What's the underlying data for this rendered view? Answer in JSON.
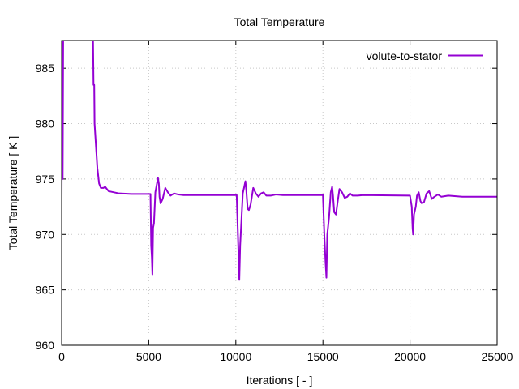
{
  "chart_data": {
    "type": "line",
    "title": "Total Temperature",
    "xlabel": "Iterations [ - ]",
    "ylabel": "Total Temperature [ K ]",
    "xlim": [
      0,
      25000
    ],
    "ylim": [
      960,
      987.5
    ],
    "xticks": [
      0,
      5000,
      10000,
      15000,
      20000,
      25000
    ],
    "yticks": [
      960,
      965,
      970,
      975,
      980,
      985
    ],
    "grid": true,
    "legend_position": "top-right",
    "series": [
      {
        "name": "volute-to-stator",
        "color": "#9400d3",
        "points": [
          [
            0,
            973.1
          ],
          [
            30,
            988.0
          ],
          [
            60,
            975.0
          ],
          [
            90,
            988.0
          ],
          [
            1800,
            988.0
          ],
          [
            1830,
            983.5
          ],
          [
            1870,
            983.5
          ],
          [
            1890,
            980.0
          ],
          [
            1950,
            978.5
          ],
          [
            2050,
            976.0
          ],
          [
            2150,
            974.6
          ],
          [
            2250,
            974.2
          ],
          [
            2400,
            974.2
          ],
          [
            2500,
            974.3
          ],
          [
            2700,
            973.9
          ],
          [
            3000,
            973.8
          ],
          [
            3300,
            973.7
          ],
          [
            4000,
            973.65
          ],
          [
            5000,
            973.65
          ],
          [
            5100,
            973.65
          ],
          [
            5140,
            969.0
          ],
          [
            5180,
            967.9
          ],
          [
            5210,
            966.4
          ],
          [
            5250,
            970.6
          ],
          [
            5300,
            971.0
          ],
          [
            5380,
            973.8
          ],
          [
            5450,
            974.4
          ],
          [
            5530,
            975.1
          ],
          [
            5580,
            974.6
          ],
          [
            5620,
            973.4
          ],
          [
            5680,
            972.8
          ],
          [
            5800,
            973.2
          ],
          [
            5950,
            974.2
          ],
          [
            6100,
            973.8
          ],
          [
            6250,
            973.5
          ],
          [
            6450,
            973.7
          ],
          [
            6700,
            973.6
          ],
          [
            7000,
            973.55
          ],
          [
            8000,
            973.55
          ],
          [
            10050,
            973.55
          ],
          [
            10120,
            970.0
          ],
          [
            10150,
            968.5
          ],
          [
            10200,
            965.9
          ],
          [
            10250,
            969.0
          ],
          [
            10330,
            971.5
          ],
          [
            10400,
            973.7
          ],
          [
            10470,
            974.2
          ],
          [
            10550,
            974.8
          ],
          [
            10600,
            974.0
          ],
          [
            10680,
            972.3
          ],
          [
            10750,
            972.2
          ],
          [
            10850,
            972.7
          ],
          [
            11000,
            974.2
          ],
          [
            11150,
            973.7
          ],
          [
            11300,
            973.4
          ],
          [
            11450,
            973.7
          ],
          [
            11600,
            973.8
          ],
          [
            11750,
            973.5
          ],
          [
            12000,
            973.5
          ],
          [
            12300,
            973.6
          ],
          [
            12700,
            973.55
          ],
          [
            15000,
            973.55
          ],
          [
            15080,
            970.0
          ],
          [
            15150,
            967.5
          ],
          [
            15200,
            966.1
          ],
          [
            15250,
            970.0
          ],
          [
            15350,
            971.5
          ],
          [
            15450,
            973.8
          ],
          [
            15530,
            974.3
          ],
          [
            15580,
            973.5
          ],
          [
            15650,
            972.0
          ],
          [
            15750,
            971.8
          ],
          [
            15850,
            973.0
          ],
          [
            15950,
            974.1
          ],
          [
            16100,
            973.8
          ],
          [
            16250,
            973.3
          ],
          [
            16400,
            973.4
          ],
          [
            16550,
            973.7
          ],
          [
            16700,
            973.5
          ],
          [
            17000,
            973.5
          ],
          [
            17300,
            973.55
          ],
          [
            20000,
            973.5
          ],
          [
            20100,
            972.5
          ],
          [
            20150,
            970.5
          ],
          [
            20180,
            970.0
          ],
          [
            20230,
            971.8
          ],
          [
            20330,
            972.5
          ],
          [
            20400,
            973.5
          ],
          [
            20500,
            973.8
          ],
          [
            20600,
            973.0
          ],
          [
            20680,
            972.8
          ],
          [
            20800,
            972.9
          ],
          [
            20950,
            973.7
          ],
          [
            21100,
            973.9
          ],
          [
            21250,
            973.2
          ],
          [
            21400,
            973.4
          ],
          [
            21600,
            973.6
          ],
          [
            21800,
            973.4
          ],
          [
            22200,
            973.5
          ],
          [
            23000,
            973.4
          ],
          [
            25000,
            973.4
          ]
        ]
      }
    ]
  }
}
